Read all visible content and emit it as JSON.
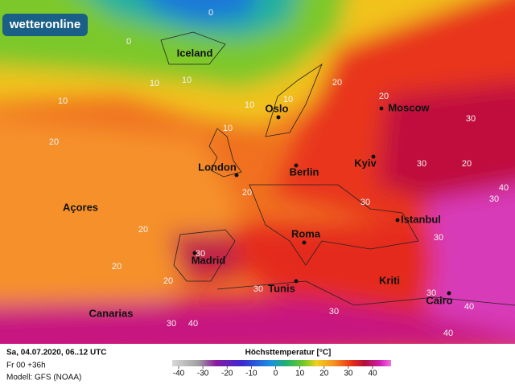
{
  "logo": "wetteronline",
  "cities": [
    "Iceland",
    "Oslo",
    "Moscow",
    "London",
    "Berlin",
    "Kyiv",
    "Açores",
    "Roma",
    "Istanbul",
    "Madrid",
    "Tunis",
    "Kriti",
    "Cairo",
    "Canarias"
  ],
  "contour_labels": [
    0,
    0,
    10,
    10,
    10,
    10,
    10,
    10,
    20,
    20,
    20,
    20,
    20,
    20,
    20,
    30,
    30,
    30,
    30,
    30,
    30,
    30,
    40,
    30,
    40,
    40,
    40,
    30,
    20,
    30
  ],
  "footer": {
    "date": "Sa, 04.07.2020, 06..12 UTC",
    "run": "Fr 00 +36h",
    "model": "Modell: GFS (NOAA)"
  },
  "legend": {
    "title": "Höchsttemperatur [°C]",
    "ticks": [
      -40,
      -30,
      -20,
      -10,
      0,
      10,
      20,
      30,
      40
    ]
  }
}
